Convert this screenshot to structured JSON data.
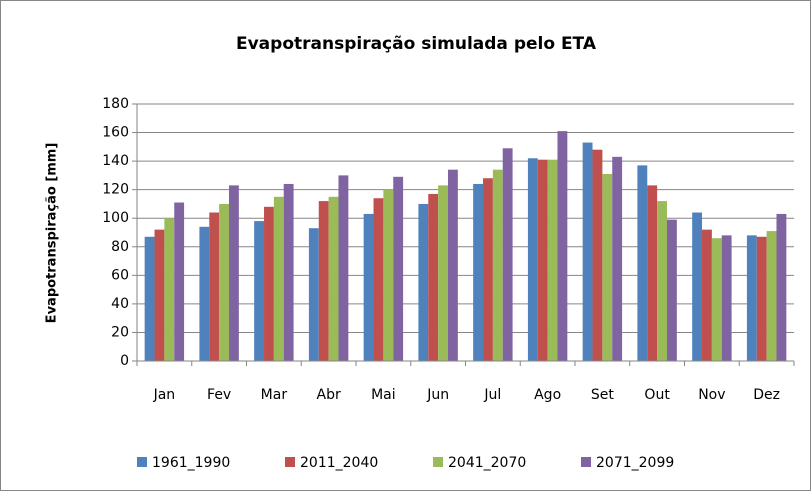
{
  "chart_data": {
    "type": "bar",
    "title": "Evapotranspiração simulada pelo ETA",
    "y_label": "Evapotranspiração  [mm]",
    "categories": [
      "Jan",
      "Fev",
      "Mar",
      "Abr",
      "Mai",
      "Jun",
      "Jul",
      "Ago",
      "Set",
      "Out",
      "Nov",
      "Dez"
    ],
    "series": [
      {
        "name": "1961_1990",
        "color": "#4f81bd",
        "values": [
          87,
          94,
          98,
          93,
          103,
          110,
          124,
          142,
          153,
          137,
          104,
          88
        ]
      },
      {
        "name": "2011_2040",
        "color": "#c0504d",
        "values": [
          92,
          104,
          108,
          112,
          114,
          117,
          128,
          141,
          148,
          123,
          92,
          87
        ]
      },
      {
        "name": "2041_2070",
        "color": "#9bbb59",
        "values": [
          100,
          110,
          115,
          115,
          120,
          123,
          134,
          141,
          131,
          112,
          86,
          91
        ]
      },
      {
        "name": "2071_2099",
        "color": "#8064a2",
        "values": [
          111,
          123,
          124,
          130,
          129,
          134,
          149,
          161,
          143,
          99,
          88,
          103
        ]
      }
    ],
    "ylim": [
      0,
      180
    ],
    "yticks": [
      0,
      20,
      40,
      60,
      80,
      100,
      120,
      140,
      160,
      180
    ],
    "grid": true,
    "legend": "bottom"
  }
}
